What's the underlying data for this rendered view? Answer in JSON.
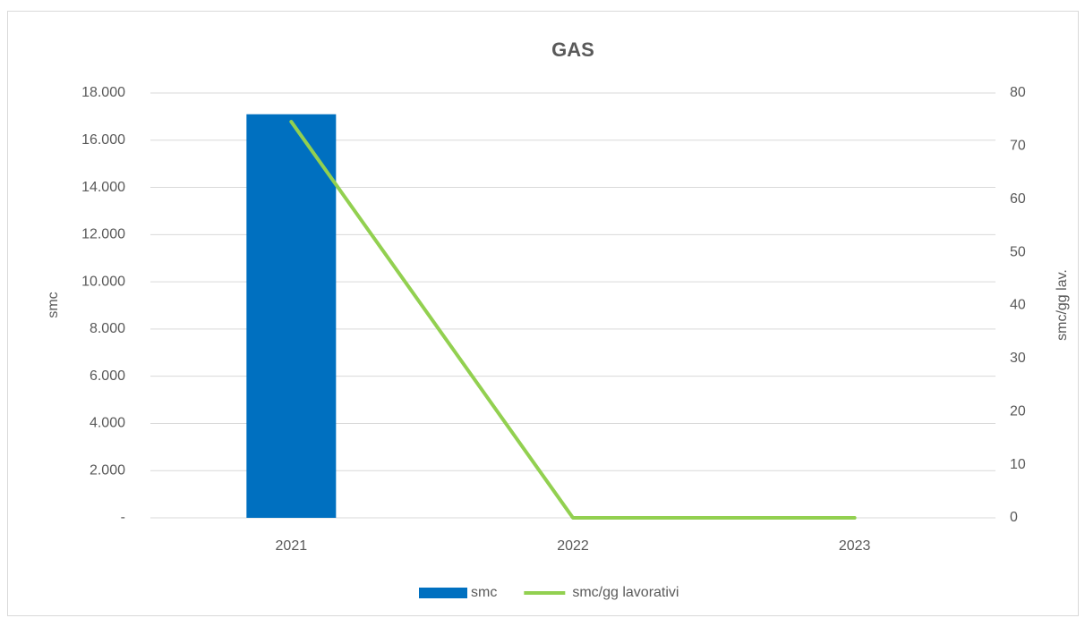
{
  "chart_data": {
    "type": "bar-line",
    "title": "GAS",
    "categories": [
      "2021",
      "2022",
      "2023"
    ],
    "series": [
      {
        "name": "smc",
        "type": "bar",
        "color": "#0070c0",
        "values": [
          17100,
          0,
          0
        ]
      },
      {
        "name": "smc/gg lavorativi",
        "type": "line",
        "color": "#92d050",
        "axis": "y2",
        "values": [
          74.6,
          0,
          0
        ]
      }
    ],
    "ylabel": "smc",
    "y2label": "smc/gg lav.",
    "ylim": [
      0,
      18000
    ],
    "yticks": [
      {
        "value": 0,
        "label": "-"
      },
      {
        "value": 2000,
        "label": "2.000"
      },
      {
        "value": 4000,
        "label": "4.000"
      },
      {
        "value": 6000,
        "label": "6.000"
      },
      {
        "value": 8000,
        "label": "8.000"
      },
      {
        "value": 10000,
        "label": "10.000"
      },
      {
        "value": 12000,
        "label": "12.000"
      },
      {
        "value": 14000,
        "label": "14.000"
      },
      {
        "value": 16000,
        "label": "16.000"
      },
      {
        "value": 18000,
        "label": "18.000"
      }
    ],
    "y2lim": [
      0,
      80
    ],
    "y2ticks": [
      0,
      10,
      20,
      30,
      40,
      50,
      60,
      70,
      80
    ],
    "grid": true,
    "legend": "bottom"
  }
}
